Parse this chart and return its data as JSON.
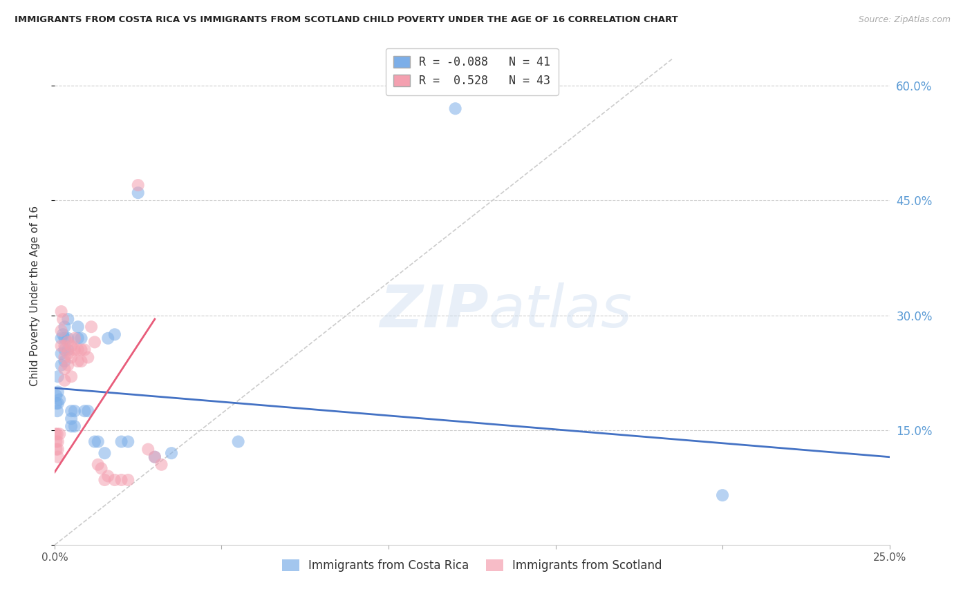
{
  "title": "IMMIGRANTS FROM COSTA RICA VS IMMIGRANTS FROM SCOTLAND CHILD POVERTY UNDER THE AGE OF 16 CORRELATION CHART",
  "source": "Source: ZipAtlas.com",
  "ylabel": "Child Poverty Under the Age of 16",
  "x_min": 0.0,
  "x_max": 0.25,
  "y_min": 0.0,
  "y_max": 0.65,
  "x_ticks": [
    0.0,
    0.05,
    0.1,
    0.15,
    0.2,
    0.25
  ],
  "x_tick_labels": [
    "0.0%",
    "",
    "",
    "",
    "",
    "25.0%"
  ],
  "y_ticks": [
    0.0,
    0.15,
    0.3,
    0.45,
    0.6
  ],
  "y_tick_labels_right": [
    "",
    "15.0%",
    "30.0%",
    "45.0%",
    "60.0%"
  ],
  "costa_rica_color": "#7caee8",
  "scotland_color": "#f4a0b0",
  "trend_costa_rica_color": "#4472c4",
  "trend_scotland_color": "#e85c7a",
  "legend_R_costa_rica": "-0.088",
  "legend_N_costa_rica": "41",
  "legend_R_scotland": "0.528",
  "legend_N_scotland": "43",
  "costa_rica_x": [
    0.0005,
    0.0005,
    0.0008,
    0.001,
    0.001,
    0.001,
    0.0015,
    0.002,
    0.002,
    0.002,
    0.0025,
    0.003,
    0.003,
    0.003,
    0.003,
    0.004,
    0.004,
    0.004,
    0.005,
    0.005,
    0.005,
    0.006,
    0.006,
    0.007,
    0.007,
    0.008,
    0.009,
    0.01,
    0.012,
    0.013,
    0.015,
    0.016,
    0.018,
    0.02,
    0.022,
    0.025,
    0.03,
    0.035,
    0.055,
    0.12,
    0.2
  ],
  "costa_rica_y": [
    0.195,
    0.185,
    0.175,
    0.22,
    0.2,
    0.185,
    0.19,
    0.27,
    0.25,
    0.235,
    0.275,
    0.285,
    0.27,
    0.255,
    0.24,
    0.295,
    0.27,
    0.255,
    0.175,
    0.165,
    0.155,
    0.175,
    0.155,
    0.285,
    0.27,
    0.27,
    0.175,
    0.175,
    0.135,
    0.135,
    0.12,
    0.27,
    0.275,
    0.135,
    0.135,
    0.46,
    0.115,
    0.12,
    0.135,
    0.57,
    0.065
  ],
  "scotland_x": [
    0.0003,
    0.0005,
    0.0005,
    0.0008,
    0.001,
    0.001,
    0.001,
    0.0015,
    0.002,
    0.002,
    0.002,
    0.0025,
    0.003,
    0.003,
    0.003,
    0.003,
    0.004,
    0.004,
    0.004,
    0.005,
    0.005,
    0.005,
    0.006,
    0.006,
    0.007,
    0.007,
    0.008,
    0.008,
    0.009,
    0.01,
    0.011,
    0.012,
    0.013,
    0.014,
    0.015,
    0.016,
    0.018,
    0.02,
    0.022,
    0.025,
    0.028,
    0.03,
    0.032
  ],
  "scotland_y": [
    0.145,
    0.135,
    0.125,
    0.145,
    0.135,
    0.125,
    0.115,
    0.145,
    0.305,
    0.28,
    0.26,
    0.295,
    0.26,
    0.245,
    0.23,
    0.215,
    0.265,
    0.25,
    0.235,
    0.26,
    0.245,
    0.22,
    0.27,
    0.255,
    0.255,
    0.24,
    0.255,
    0.24,
    0.255,
    0.245,
    0.285,
    0.265,
    0.105,
    0.1,
    0.085,
    0.09,
    0.085,
    0.085,
    0.085,
    0.47,
    0.125,
    0.115,
    0.105
  ],
  "trend_cr_x0": 0.0,
  "trend_cr_y0": 0.205,
  "trend_cr_x1": 0.25,
  "trend_cr_y1": 0.115,
  "trend_sc_x0": 0.0,
  "trend_sc_y0": 0.095,
  "trend_sc_x1": 0.03,
  "trend_sc_y1": 0.295,
  "ref_line_x0": 0.0,
  "ref_line_y0": 0.0,
  "ref_line_x1": 0.185,
  "ref_line_y1": 0.635
}
